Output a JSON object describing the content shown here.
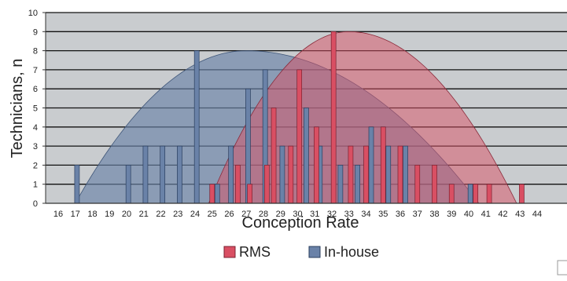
{
  "chart_data": {
    "type": "bar",
    "xlabel": "Conception Rate",
    "ylabel": "Technicians, n",
    "x_ticks": [
      16,
      17,
      18,
      19,
      20,
      21,
      22,
      23,
      24,
      25,
      26,
      27,
      28,
      29,
      30,
      31,
      32,
      33,
      34,
      35,
      36,
      37,
      38,
      39,
      40,
      41,
      42,
      43,
      44
    ],
    "ylim": [
      0,
      10
    ],
    "y_ticks": [
      0,
      1,
      2,
      3,
      4,
      5,
      6,
      7,
      8,
      9,
      10
    ],
    "grid": true,
    "legend_position": "bottom",
    "series": [
      {
        "name": "RMS",
        "color": "#d94f63",
        "bars": [
          {
            "x": 25.0,
            "y": 1
          },
          {
            "x": 26.5,
            "y": 2
          },
          {
            "x": 27.2,
            "y": 1
          },
          {
            "x": 28.2,
            "y": 2
          },
          {
            "x": 28.6,
            "y": 5
          },
          {
            "x": 29.6,
            "y": 3
          },
          {
            "x": 30.1,
            "y": 7
          },
          {
            "x": 31.1,
            "y": 4
          },
          {
            "x": 32.1,
            "y": 9
          },
          {
            "x": 33.1,
            "y": 3
          },
          {
            "x": 34.0,
            "y": 3
          },
          {
            "x": 35.0,
            "y": 4
          },
          {
            "x": 36.0,
            "y": 3
          },
          {
            "x": 37.0,
            "y": 2
          },
          {
            "x": 38.0,
            "y": 2
          },
          {
            "x": 39.0,
            "y": 1
          },
          {
            "x": 40.4,
            "y": 1
          },
          {
            "x": 41.2,
            "y": 1
          },
          {
            "x": 43.1,
            "y": 1
          }
        ],
        "curve": {
          "start": 24.8,
          "peak_x": 33.0,
          "peak_y": 9,
          "end": 42.8
        }
      },
      {
        "name": "In-house",
        "color": "#6a82a8",
        "bars": [
          {
            "x": 17.1,
            "y": 2
          },
          {
            "x": 20.1,
            "y": 2
          },
          {
            "x": 21.1,
            "y": 3
          },
          {
            "x": 22.1,
            "y": 3
          },
          {
            "x": 23.1,
            "y": 3
          },
          {
            "x": 24.1,
            "y": 8
          },
          {
            "x": 25.3,
            "y": 1
          },
          {
            "x": 26.1,
            "y": 3
          },
          {
            "x": 27.1,
            "y": 6
          },
          {
            "x": 28.1,
            "y": 7
          },
          {
            "x": 29.1,
            "y": 3
          },
          {
            "x": 30.5,
            "y": 5
          },
          {
            "x": 31.3,
            "y": 3
          },
          {
            "x": 32.5,
            "y": 2
          },
          {
            "x": 33.5,
            "y": 2
          },
          {
            "x": 34.3,
            "y": 4
          },
          {
            "x": 35.3,
            "y": 3
          },
          {
            "x": 36.3,
            "y": 3
          },
          {
            "x": 40.1,
            "y": 1
          }
        ],
        "curve": {
          "start": 17.0,
          "peak_x": 27.0,
          "peak_y": 8,
          "end": 40.6
        }
      }
    ]
  }
}
